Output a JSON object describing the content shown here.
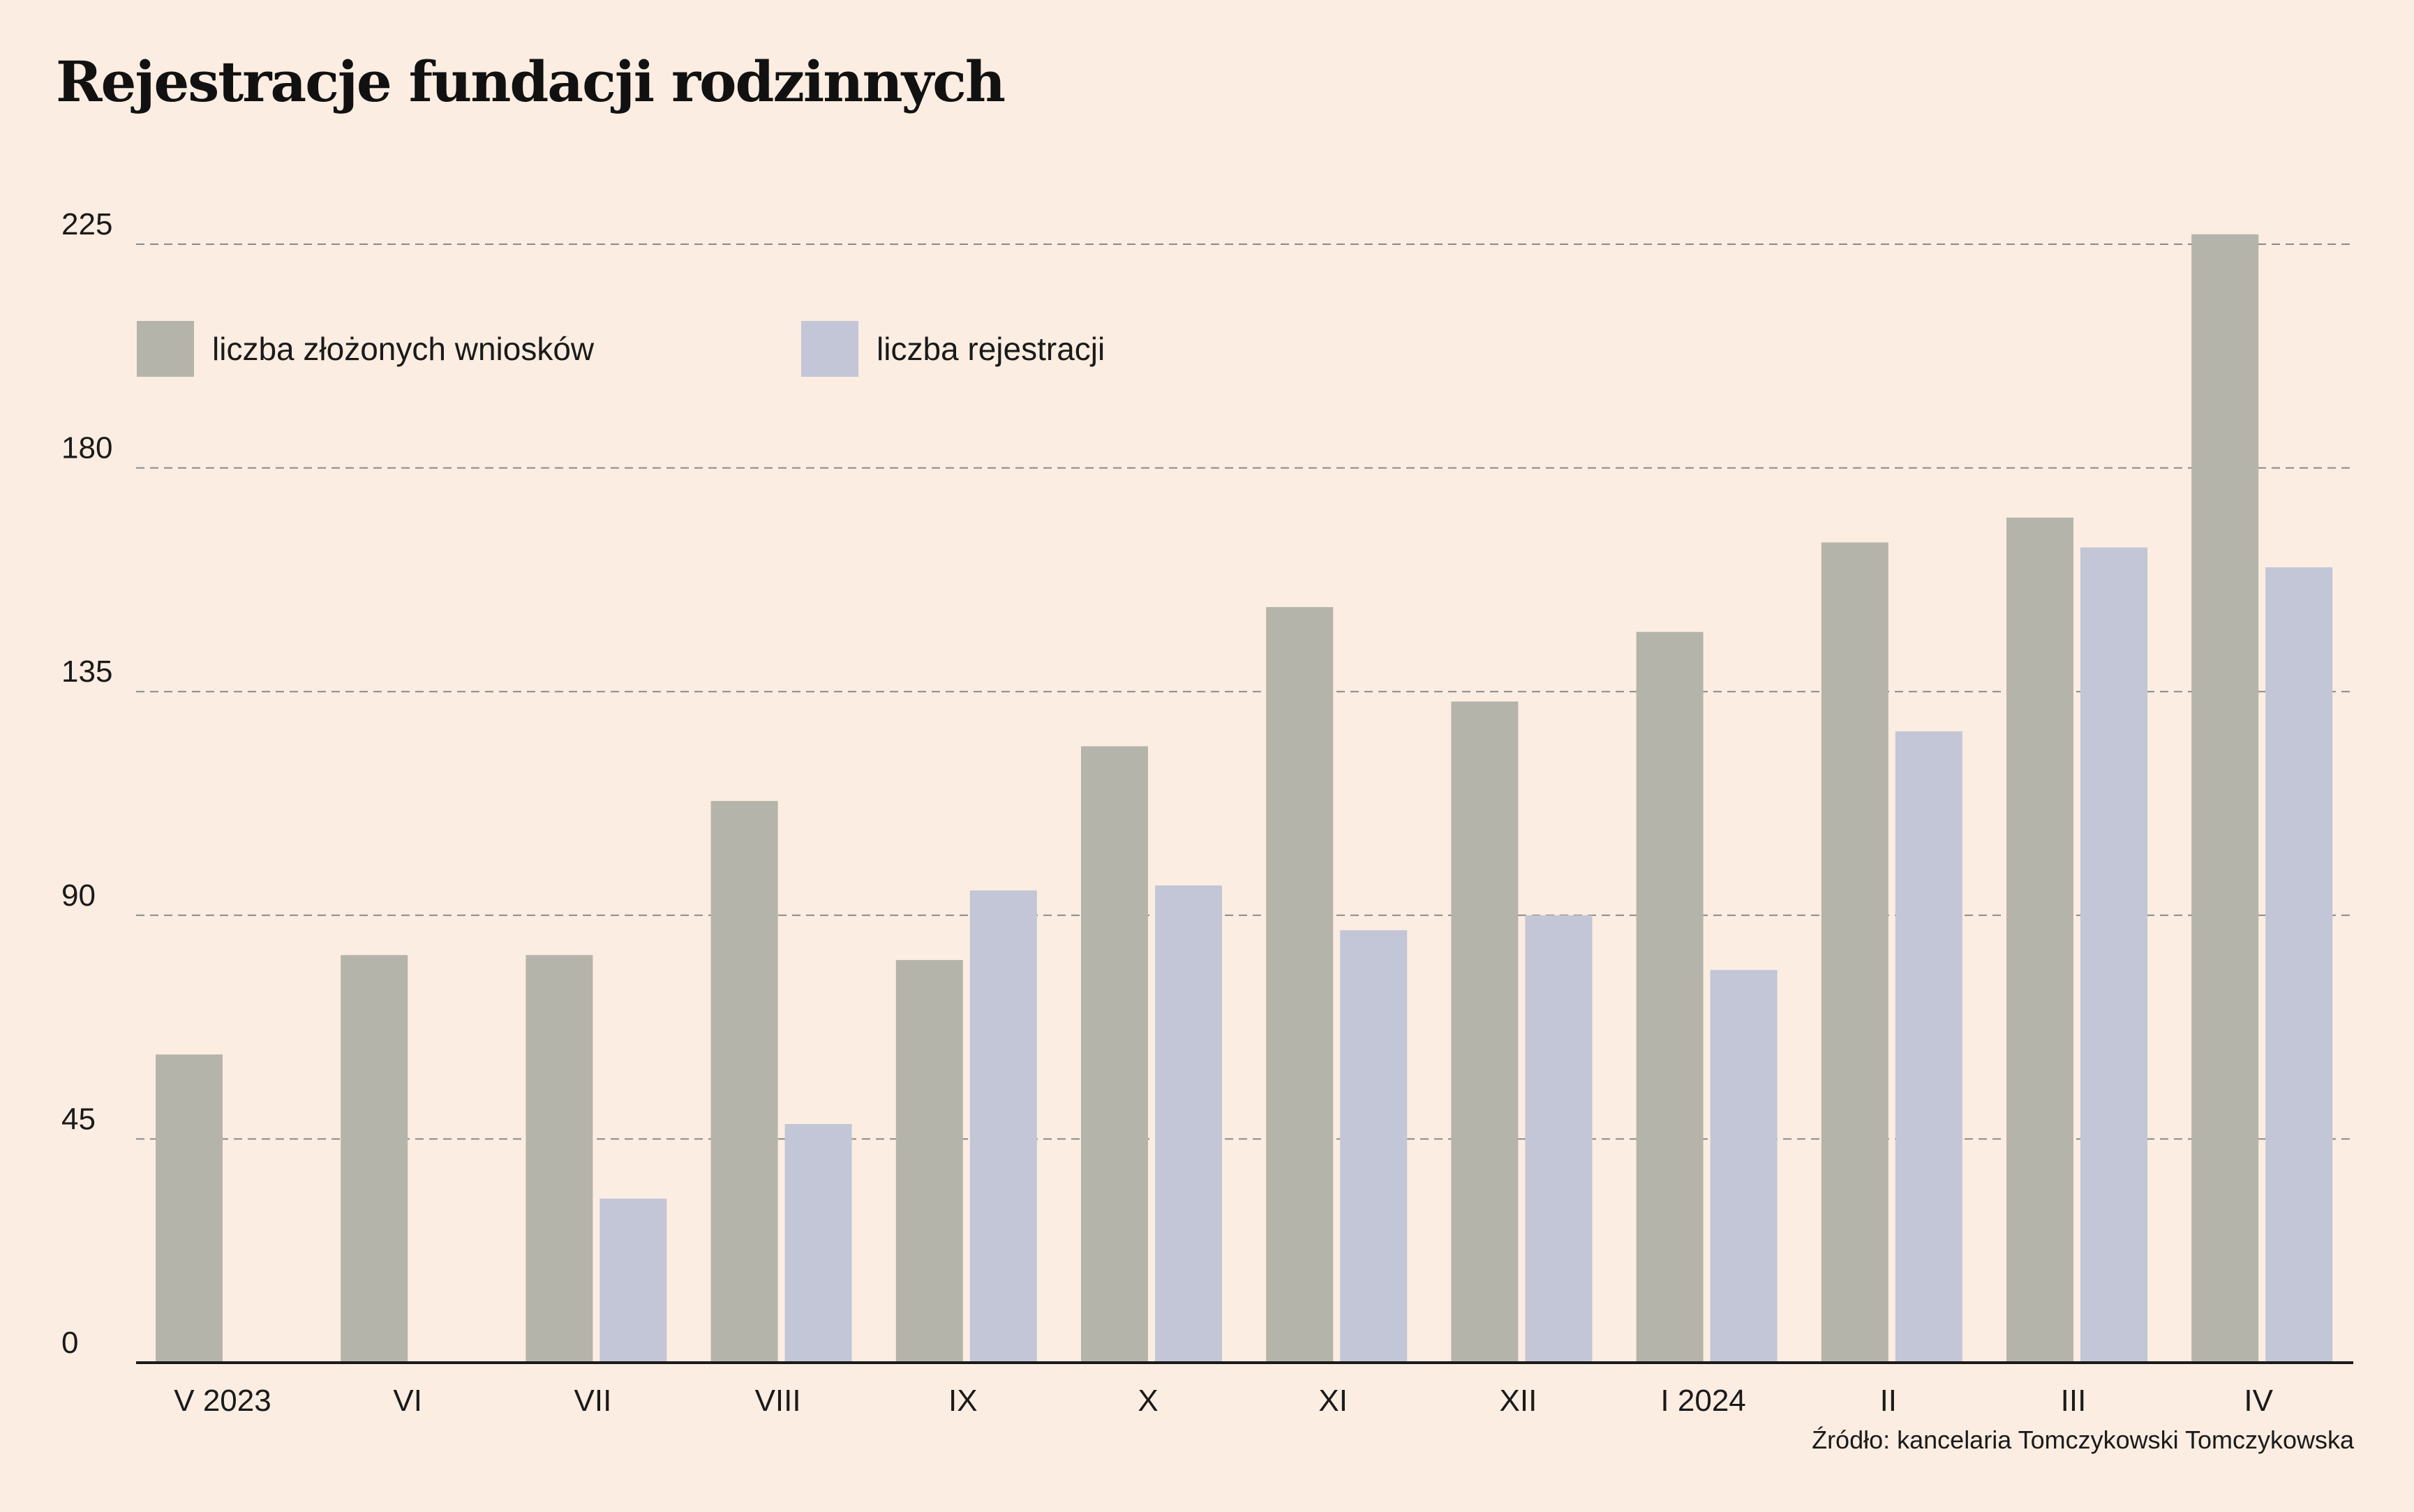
{
  "chart_data": {
    "type": "bar",
    "title": "Rejestracje fundacji rodzinnych",
    "xlabel": "",
    "ylabel": "",
    "categories": [
      "V 2023",
      "VI",
      "VII",
      "VIII",
      "IX",
      "X",
      "XI",
      "XII",
      "I 2024",
      "II",
      "III",
      "IV"
    ],
    "series": [
      {
        "name": "liczba złożonych wniosków",
        "color": "#b5b4aa",
        "values": [
          62,
          82,
          82,
          113,
          81,
          124,
          152,
          133,
          147,
          165,
          170,
          227
        ]
      },
      {
        "name": "liczba rejestracji",
        "color": "#c2c6d6",
        "values": [
          0,
          0,
          33,
          48,
          95,
          96,
          87,
          90,
          79,
          127,
          164,
          160
        ]
      }
    ],
    "ylim": [
      0,
      225
    ],
    "yticks": [
      0,
      45,
      90,
      135,
      180,
      225
    ],
    "grid": true,
    "legend_position": "top-left",
    "source": "Źródło: kancelaria Tomczykowski Tomczykowska"
  }
}
